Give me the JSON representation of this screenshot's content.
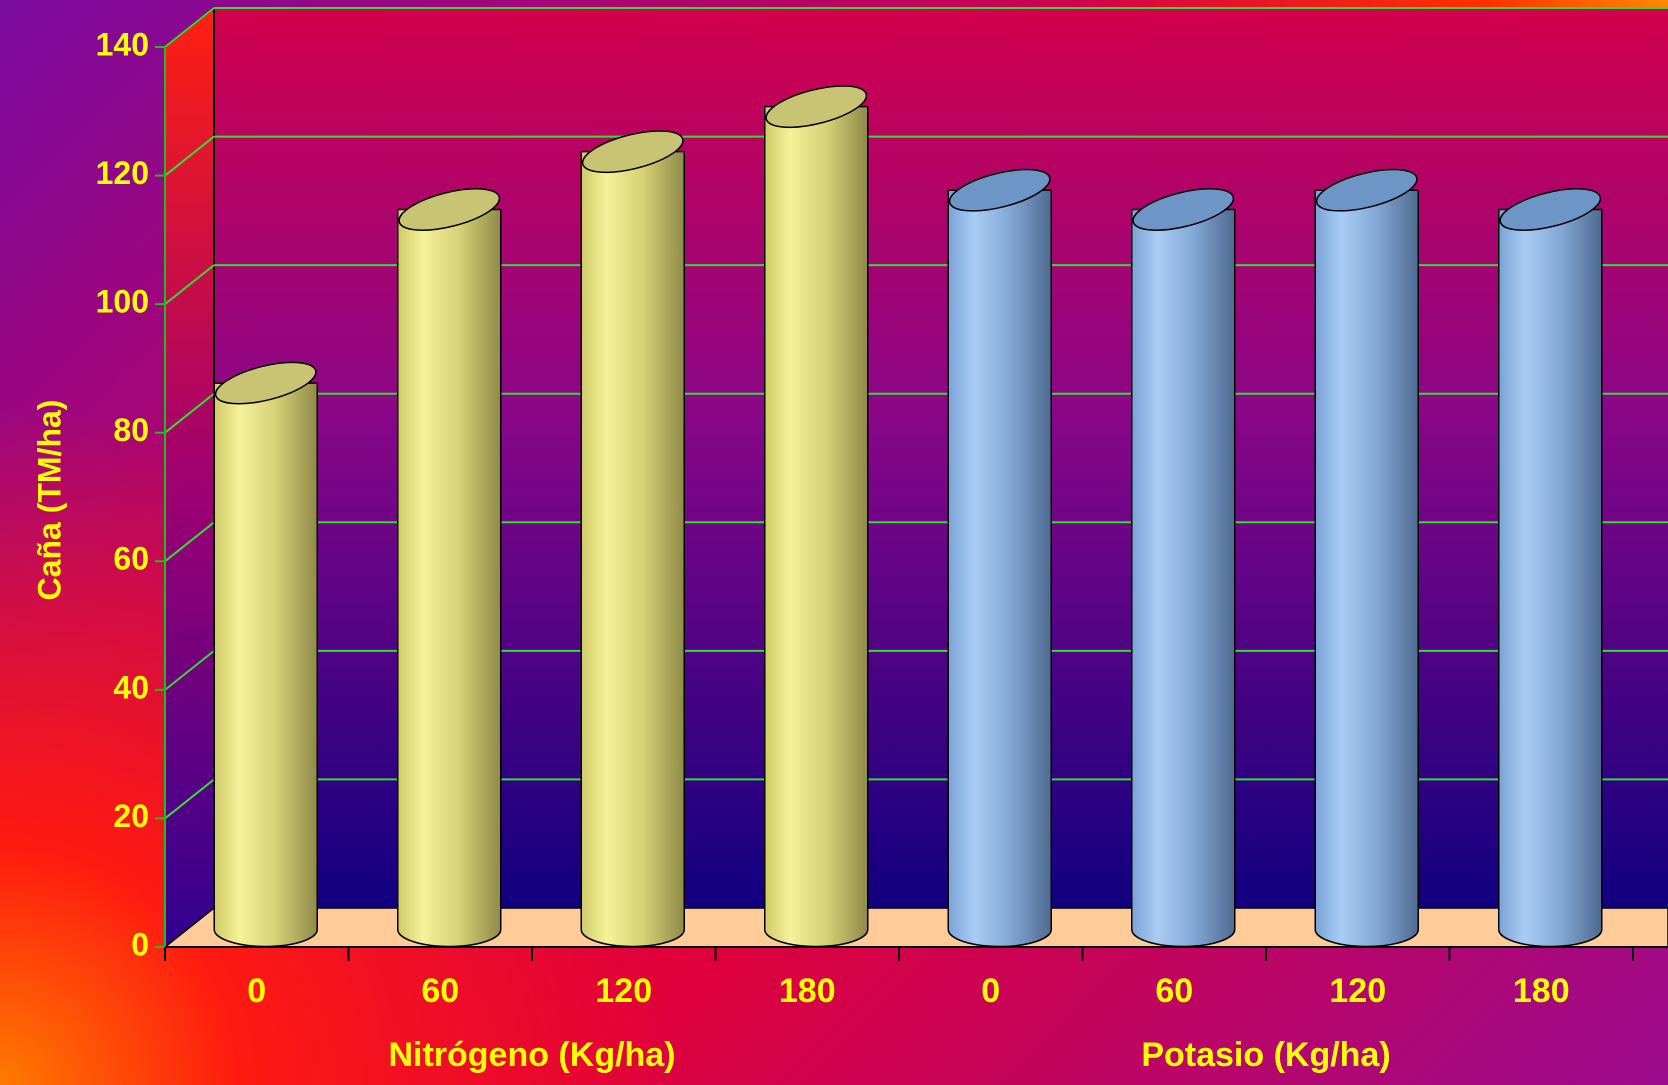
{
  "chart_data": {
    "type": "bar",
    "style": "3d-cylinder",
    "ylabel": "Caña (TM/ha)",
    "ylim": [
      0,
      140
    ],
    "yticks": [
      "0",
      "20",
      "40",
      "60",
      "80",
      "100",
      "120",
      "140"
    ],
    "grid": true,
    "groups": [
      {
        "label": "Nitrógeno (Kg/ha)",
        "color": "#e6e07e",
        "categories": [
          "0",
          "60",
          "120",
          "180"
        ],
        "values": [
          85,
          112,
          121,
          128
        ]
      },
      {
        "label": "Potasio (Kg/ha)",
        "color": "#8fb6e6",
        "categories": [
          "0",
          "60",
          "120",
          "180"
        ],
        "values": [
          115,
          112,
          115,
          112
        ]
      }
    ],
    "colors": {
      "axis_text": "#ffff00",
      "gridlines": "#33dd33",
      "floor": "#ffcc99",
      "wall_top": "#d2004c",
      "wall_bottom": "#100080"
    }
  }
}
